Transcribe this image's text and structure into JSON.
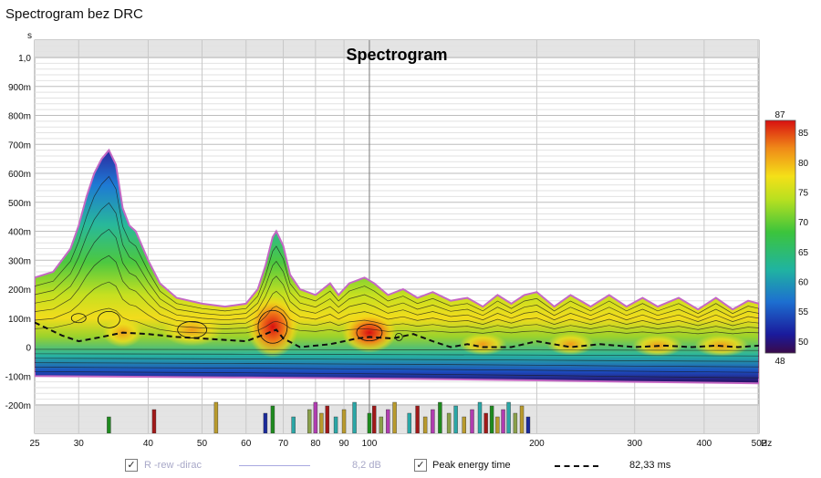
{
  "window": {
    "title": "Spectrogram bez DRC"
  },
  "chart_data": {
    "type": "heatmap",
    "title": "Spectrogram",
    "ylabel": "s",
    "xlabel": "Hz",
    "x_scale": "log",
    "xlim": [
      25,
      502
    ],
    "ylim": [
      -0.3,
      1.05
    ],
    "x_ticks": [
      "25",
      "30",
      "40",
      "50",
      "60",
      "70",
      "80",
      "90",
      "100",
      "200",
      "300",
      "400",
      "502"
    ],
    "y_ticks": [
      "1,0",
      "900m",
      "800m",
      "700m",
      "600m",
      "500m",
      "400m",
      "300m",
      "200m",
      "100m",
      "0",
      "-100m",
      "-200m"
    ],
    "colorbar": {
      "min": 48,
      "max": 87,
      "ticks": [
        "87",
        "85",
        "80",
        "75",
        "70",
        "65",
        "60",
        "55",
        "50",
        "48"
      ]
    },
    "peak_energy_time": {
      "name": "Peak energy time",
      "x": [
        25,
        28,
        30,
        33,
        36,
        40,
        45,
        50,
        55,
        60,
        65,
        68,
        70,
        75,
        80,
        85,
        90,
        95,
        100,
        110,
        120,
        130,
        140,
        150,
        160,
        180,
        200,
        230,
        260,
        300,
        340,
        380,
        420,
        460,
        502
      ],
      "y": [
        0.085,
        0.04,
        0.02,
        0.035,
        0.05,
        0.045,
        0.035,
        0.03,
        0.025,
        0.02,
        0.045,
        0.06,
        0.03,
        0.0,
        0.005,
        0.01,
        0.02,
        0.03,
        0.035,
        0.03,
        0.045,
        0.02,
        0.0,
        0.01,
        0.0,
        0.0,
        0.02,
        0.0,
        0.01,
        0.0,
        0.005,
        0.0,
        0.005,
        0.0,
        0.005
      ]
    },
    "impulse_bars": [
      {
        "x": 34,
        "color": "#1e8a1e"
      },
      {
        "x": 41,
        "color": "#a01818"
      },
      {
        "x": 53,
        "color": "#b89a2c"
      },
      {
        "x": 65,
        "color": "#1a2a9a"
      },
      {
        "x": 67,
        "color": "#1e8a1e"
      },
      {
        "x": 73,
        "color": "#2aa6a6"
      },
      {
        "x": 78,
        "color": "#8aa04a"
      },
      {
        "x": 80,
        "color": "#b03cb0"
      },
      {
        "x": 82,
        "color": "#b89a2c"
      },
      {
        "x": 84,
        "color": "#a01818"
      },
      {
        "x": 87,
        "color": "#2aa6a6"
      },
      {
        "x": 90,
        "color": "#b89a2c"
      },
      {
        "x": 94,
        "color": "#2aa6a6"
      },
      {
        "x": 100,
        "color": "#1e8a1e"
      },
      {
        "x": 102,
        "color": "#a01818"
      },
      {
        "x": 105,
        "color": "#8aa04a"
      },
      {
        "x": 108,
        "color": "#b03cb0"
      },
      {
        "x": 111,
        "color": "#b89a2c"
      },
      {
        "x": 118,
        "color": "#2aa6a6"
      },
      {
        "x": 122,
        "color": "#a01818"
      },
      {
        "x": 126,
        "color": "#b89a2c"
      },
      {
        "x": 130,
        "color": "#b03cb0"
      },
      {
        "x": 134,
        "color": "#1e8a1e"
      },
      {
        "x": 139,
        "color": "#8aa04a"
      },
      {
        "x": 143,
        "color": "#2aa6a6"
      },
      {
        "x": 148,
        "color": "#b89a2c"
      },
      {
        "x": 153,
        "color": "#b03cb0"
      },
      {
        "x": 158,
        "color": "#2aa6a6"
      },
      {
        "x": 162,
        "color": "#a01818"
      },
      {
        "x": 166,
        "color": "#1e8a1e"
      },
      {
        "x": 170,
        "color": "#b89a2c"
      },
      {
        "x": 174,
        "color": "#b03cb0"
      },
      {
        "x": 178,
        "color": "#2aa6a6"
      },
      {
        "x": 183,
        "color": "#8aa04a"
      },
      {
        "x": 188,
        "color": "#b89a2c"
      },
      {
        "x": 193,
        "color": "#1a2a9a"
      }
    ]
  },
  "legend": {
    "series1_name": "R -rew -dirac",
    "series1_value": "8,2 dB",
    "series1_checked": "✓",
    "series2_name": "Peak energy time",
    "series2_value": "82,33 ms",
    "series2_checked": "✓"
  }
}
